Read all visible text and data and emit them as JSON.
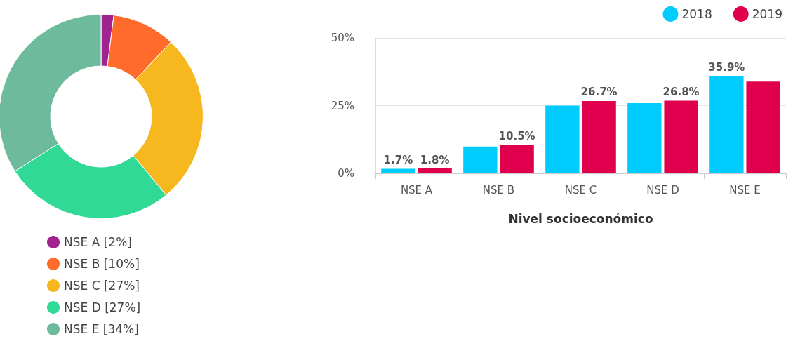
{
  "chart_data": [
    {
      "type": "donut",
      "categories": [
        "NSE A [2%]",
        "NSE B [10%]",
        "NSE C [27%]",
        "NSE D [27%]",
        "NSE E [34%]"
      ],
      "values": [
        2,
        10,
        27,
        27,
        34
      ],
      "colors": [
        "#a0238f",
        "#ff6b2b",
        "#f7b81f",
        "#30d996",
        "#6dbb9c"
      ],
      "legend": "bottom"
    },
    {
      "type": "bar",
      "categories": [
        "NSE A",
        "NSE B",
        "NSE C",
        "NSE D",
        "NSE E"
      ],
      "xlabel": "Nivel socioeconómico",
      "series": [
        {
          "name": "2018",
          "color": "#00ccff",
          "values": [
            1.7,
            9.9,
            25.0,
            25.9,
            35.9
          ],
          "value_labels": [
            "1.7%",
            null,
            null,
            null,
            "35.9%"
          ]
        },
        {
          "name": "2019",
          "color": "#e0004d",
          "values": [
            1.8,
            10.5,
            26.7,
            26.8,
            33.9
          ],
          "value_labels": [
            "1.8%",
            "10.5%",
            "26.7%",
            "26.8%",
            null
          ]
        }
      ],
      "ylim": [
        0,
        50
      ],
      "yticks": [
        {
          "value": 0,
          "label": "0%"
        },
        {
          "value": 25,
          "label": "25%"
        },
        {
          "value": 50,
          "label": "50%"
        }
      ],
      "grid": "y",
      "legend": "top right"
    }
  ]
}
